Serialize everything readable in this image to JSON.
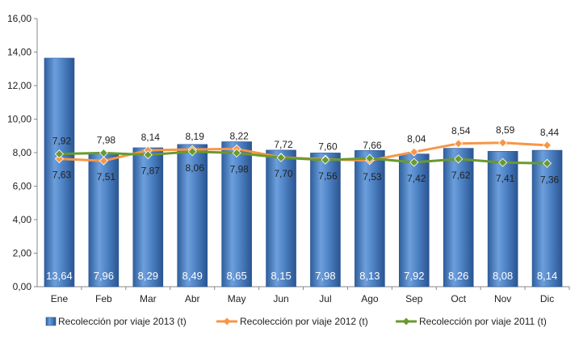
{
  "chart_data": {
    "type": "bar",
    "categories": [
      "Ene",
      "Feb",
      "Mar",
      "Abr",
      "May",
      "Jun",
      "Jul",
      "Ago",
      "Sep",
      "Oct",
      "Nov",
      "Dic"
    ],
    "ylim": [
      0,
      16
    ],
    "y_ticks": [
      "0,00",
      "2,00",
      "4,00",
      "6,00",
      "8,00",
      "10,00",
      "12,00",
      "14,00",
      "16,00"
    ],
    "grid": false,
    "legend_position": "bottom",
    "series": [
      {
        "name": "Recolección por viaje 2013 (t)",
        "type": "bar",
        "color": "#4a7fc1",
        "values": [
          13.64,
          7.96,
          8.29,
          8.49,
          8.65,
          8.15,
          7.98,
          8.13,
          7.92,
          8.26,
          8.08,
          8.14
        ],
        "labels": [
          "13,64",
          "7,96",
          "8,29",
          "8,49",
          "8,65",
          "8,15",
          "7,98",
          "8,13",
          "7,92",
          "8,26",
          "8,08",
          "8,14"
        ]
      },
      {
        "name": "Recolección por viaje 2012 (t)",
        "type": "line",
        "color": "#f79646",
        "values": [
          7.63,
          7.51,
          8.14,
          8.19,
          8.22,
          7.72,
          7.6,
          7.53,
          8.04,
          8.54,
          8.59,
          8.44
        ],
        "labels": [
          "7,63",
          "7,51",
          "8,14",
          "8,19",
          "8,22",
          "7,72",
          "7,60",
          "7,53",
          "8,04",
          "8,54",
          "8,59",
          "8,44"
        ]
      },
      {
        "name": "Recolección por viaje 2011 (t)",
        "type": "line",
        "color": "#6a9a2e",
        "values": [
          7.92,
          7.98,
          7.87,
          8.06,
          7.98,
          7.7,
          7.56,
          7.66,
          7.42,
          7.62,
          7.41,
          7.36
        ],
        "labels": [
          "7,92",
          "7,98",
          "7,87",
          "8,06",
          "7,98",
          "7,70",
          "7,56",
          "7,66",
          "7,42",
          "7,62",
          "7,41",
          "7,36"
        ]
      }
    ]
  }
}
